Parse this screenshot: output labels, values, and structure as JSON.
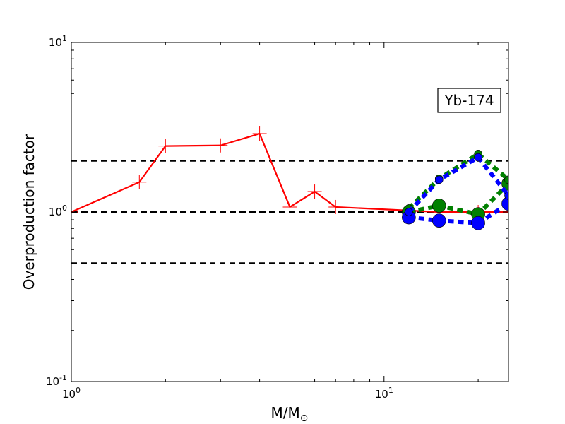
{
  "chart_data": {
    "type": "line",
    "title": "",
    "xlabel": "M/M",
    "xlabel_subscript": "⊙",
    "ylabel": "Overproduction factor",
    "xscale": "log",
    "yscale": "log",
    "xlim": [
      1,
      25
    ],
    "ylim": [
      0.1,
      10
    ],
    "x_tick_labels": [
      {
        "value": 1,
        "base": "10",
        "exp": "0"
      },
      {
        "value": 10,
        "base": "10",
        "exp": "1"
      }
    ],
    "y_tick_labels": [
      {
        "value": 0.1,
        "base": "10",
        "exp": "-1"
      },
      {
        "value": 1,
        "base": "10",
        "exp": "0"
      },
      {
        "value": 10,
        "base": "10",
        "exp": "1"
      }
    ],
    "reference_lines": [
      {
        "y": 2.0,
        "style": "dashed",
        "weight": "normal"
      },
      {
        "y": 1.0,
        "style": "dashed",
        "weight": "bold"
      },
      {
        "y": 0.5,
        "style": "dashed",
        "weight": "normal"
      }
    ],
    "annotation": "Yb-174",
    "grid": false,
    "series": [
      {
        "color": "#ff0000",
        "style": "solid",
        "marker": "plus",
        "x": [
          1.0,
          1.65,
          2.0,
          3.0,
          4.0,
          5.0,
          6.0,
          7.0,
          15.0,
          20.0,
          25.0
        ],
        "y": [
          1.0,
          1.5,
          2.45,
          2.47,
          2.9,
          1.07,
          1.32,
          1.07,
          1.0,
          1.0,
          1.0
        ]
      },
      {
        "color": "#008000",
        "style": "dotted",
        "marker": "circle-large",
        "x": [
          12.0,
          15.0,
          20.0,
          25.0
        ],
        "y": [
          1.0,
          1.09,
          0.97,
          1.47
        ]
      },
      {
        "color": "#008000",
        "style": "dotted",
        "marker": "circle-small",
        "x": [
          12.0,
          15.0,
          20.0,
          25.0
        ],
        "y": [
          1.05,
          1.57,
          2.2,
          1.55
        ]
      },
      {
        "color": "#0000ff",
        "style": "dotted",
        "marker": "circle-large",
        "x": [
          12.0,
          15.0,
          20.0,
          25.0
        ],
        "y": [
          0.93,
          0.89,
          0.86,
          1.12
        ]
      },
      {
        "color": "#0000ff",
        "style": "dotted",
        "marker": "circle-small",
        "x": [
          12.0,
          15.0,
          20.0,
          25.0
        ],
        "y": [
          1.0,
          1.55,
          2.1,
          1.25
        ]
      }
    ]
  }
}
